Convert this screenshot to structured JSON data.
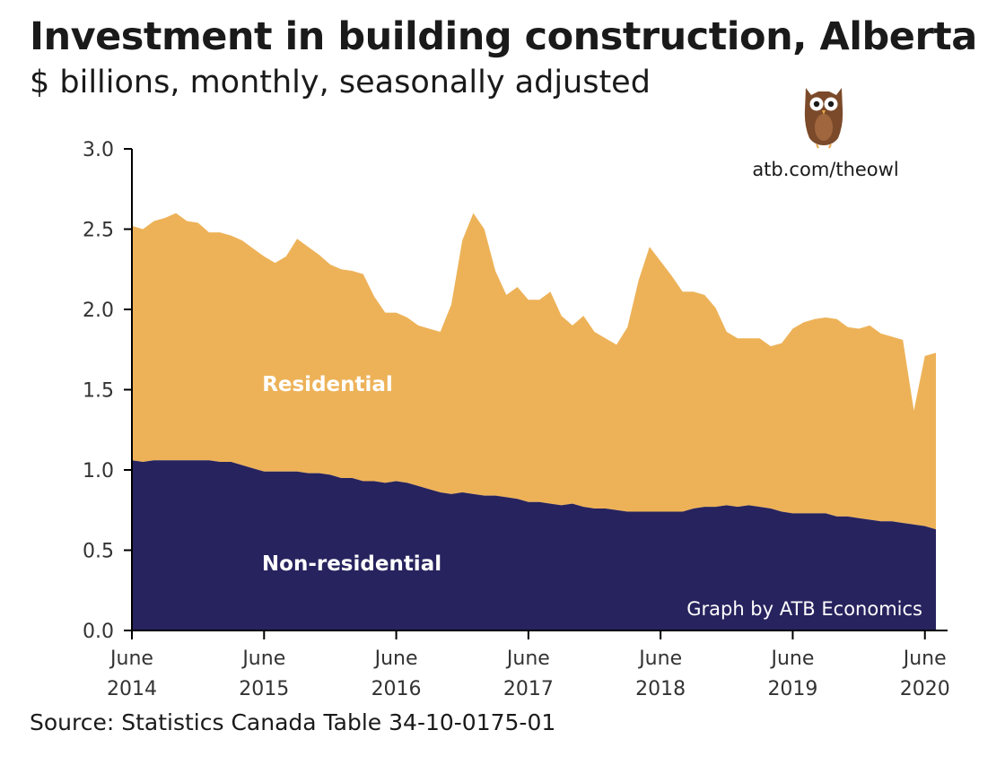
{
  "header": {
    "title": "Investment in building construction, Alberta",
    "subtitle": "$ billions, monthly, seasonally adjusted"
  },
  "footer": {
    "source": "Source: Statistics Canada Table 34-10-0175-01"
  },
  "branding": {
    "url": "atb.com/theowl",
    "credit": "Graph by ATB Economics",
    "logo_icon": "owl-icon"
  },
  "colors": {
    "residential": "#EDB258",
    "non_residential": "#27235E",
    "axis": "#000000",
    "text": "#1a1a1a"
  },
  "chart_data": {
    "type": "area",
    "stacked": true,
    "title": "Investment in building construction, Alberta",
    "subtitle": "$ billions, monthly, seasonally adjusted",
    "xlabel": "",
    "ylabel": "",
    "ylim": [
      0,
      3.0
    ],
    "yticks": [
      "0.0",
      "0.5",
      "1.0",
      "1.5",
      "2.0",
      "2.5",
      "3.0"
    ],
    "grid": false,
    "x_range": [
      "2014-06",
      "2020-06"
    ],
    "xticks": [
      {
        "month": "2014-06",
        "line1": "June",
        "line2": "2014"
      },
      {
        "month": "2015-06",
        "line1": "June",
        "line2": "2015"
      },
      {
        "month": "2016-06",
        "line1": "June",
        "line2": "2016"
      },
      {
        "month": "2017-06",
        "line1": "June",
        "line2": "2017"
      },
      {
        "month": "2018-06",
        "line1": "June",
        "line2": "2018"
      },
      {
        "month": "2019-06",
        "line1": "June",
        "line2": "2019"
      },
      {
        "month": "2020-06",
        "line1": "June",
        "line2": "2020"
      }
    ],
    "series": [
      {
        "name": "Non-residential",
        "label": "Non-residential",
        "values": [
          1.06,
          1.05,
          1.06,
          1.06,
          1.06,
          1.06,
          1.06,
          1.06,
          1.05,
          1.05,
          1.03,
          1.01,
          0.99,
          0.99,
          0.99,
          0.99,
          0.98,
          0.98,
          0.97,
          0.95,
          0.95,
          0.93,
          0.93,
          0.92,
          0.93,
          0.92,
          0.9,
          0.88,
          0.86,
          0.85,
          0.86,
          0.85,
          0.84,
          0.84,
          0.83,
          0.82,
          0.8,
          0.8,
          0.79,
          0.78,
          0.79,
          0.77,
          0.76,
          0.76,
          0.75,
          0.74,
          0.74,
          0.74,
          0.74,
          0.74,
          0.74,
          0.76,
          0.77,
          0.77,
          0.78,
          0.77,
          0.78,
          0.77,
          0.76,
          0.74,
          0.73,
          0.73,
          0.73,
          0.73,
          0.71,
          0.71,
          0.7,
          0.69,
          0.68,
          0.68,
          0.67,
          0.66,
          0.65,
          0.63
        ]
      },
      {
        "name": "Residential",
        "label": "Residential",
        "values": [
          1.46,
          1.45,
          1.49,
          1.51,
          1.54,
          1.49,
          1.48,
          1.42,
          1.43,
          1.41,
          1.4,
          1.37,
          1.34,
          1.3,
          1.34,
          1.45,
          1.41,
          1.36,
          1.31,
          1.3,
          1.29,
          1.29,
          1.15,
          1.06,
          1.05,
          1.03,
          1.0,
          1.0,
          1.0,
          1.18,
          1.57,
          1.75,
          1.66,
          1.4,
          1.26,
          1.32,
          1.26,
          1.26,
          1.32,
          1.18,
          1.11,
          1.19,
          1.1,
          1.06,
          1.03,
          1.15,
          1.44,
          1.65,
          1.56,
          1.47,
          1.37,
          1.35,
          1.32,
          1.24,
          1.08,
          1.05,
          1.04,
          1.05,
          1.01,
          1.05,
          1.15,
          1.19,
          1.21,
          1.22,
          1.23,
          1.18,
          1.18,
          1.21,
          1.17,
          1.15,
          1.14,
          0.71,
          1.06,
          1.1
        ]
      }
    ],
    "annotations": [
      "Residential",
      "Non-residential",
      "Graph by ATB Economics",
      "atb.com/theowl"
    ]
  }
}
